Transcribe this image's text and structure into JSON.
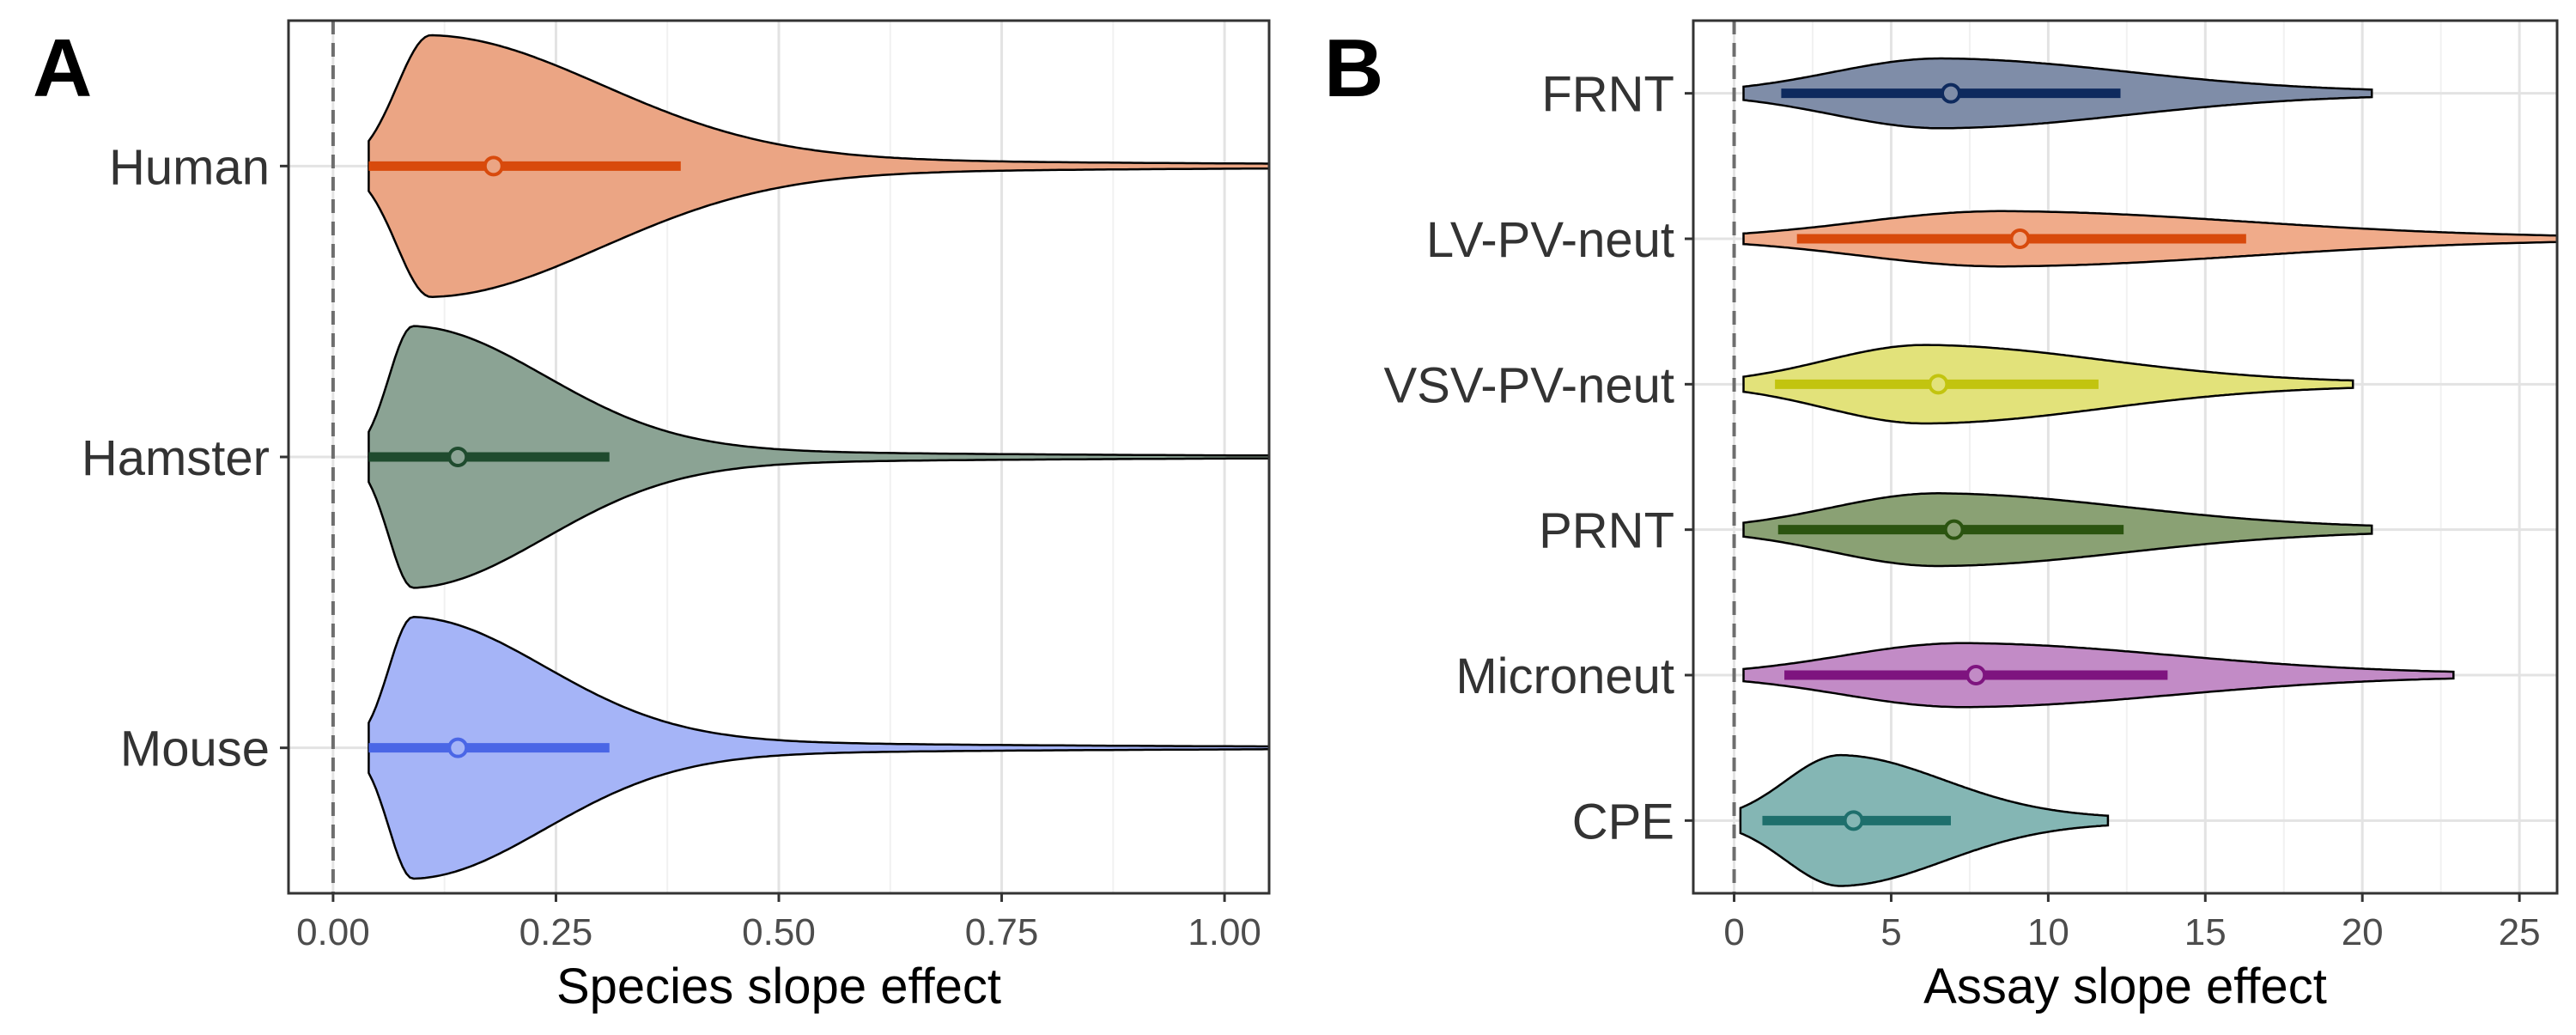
{
  "chart_data": [
    {
      "type": "violin",
      "panel_label": "A",
      "xlabel": "Species slope effect",
      "ylabel": "",
      "xlim": [
        -0.05,
        1.05
      ],
      "x_ticks": [
        0.0,
        0.25,
        0.5,
        0.75,
        1.0
      ],
      "x_tick_labels": [
        "0.00",
        "0.25",
        "0.50",
        "0.75",
        "1.00"
      ],
      "reference_line_x": 0,
      "grid": true,
      "categories": [
        "Human",
        "Hamster",
        "Mouse"
      ],
      "series": [
        {
          "name": "Human",
          "fill": "#EBA584",
          "line": "#D84A0C",
          "point": 0.18,
          "interval": [
            0.04,
            0.39
          ],
          "range": [
            0.04,
            1.05
          ],
          "mode": 0.11,
          "halfwidth": 0.45
        },
        {
          "name": "Hamster",
          "fill": "#8BA394",
          "line": "#1F4B2E",
          "point": 0.14,
          "interval": [
            0.04,
            0.31
          ],
          "range": [
            0.04,
            1.05
          ],
          "mode": 0.09,
          "halfwidth": 0.45
        },
        {
          "name": "Mouse",
          "fill": "#A5B4F7",
          "line": "#4A66E6",
          "point": 0.14,
          "interval": [
            0.04,
            0.31
          ],
          "range": [
            0.04,
            1.05
          ],
          "mode": 0.09,
          "halfwidth": 0.45
        }
      ]
    },
    {
      "type": "violin",
      "panel_label": "B",
      "xlabel": "Assay slope effect",
      "ylabel": "",
      "xlim": [
        -1.3,
        26.2
      ],
      "x_ticks": [
        0,
        5,
        10,
        15,
        20,
        25
      ],
      "x_tick_labels": [
        "0",
        "5",
        "10",
        "15",
        "20",
        "25"
      ],
      "reference_line_x": 0,
      "grid": true,
      "categories": [
        "FRNT",
        "LV-PV-neut",
        "VSV-PV-neut",
        "PRNT",
        "Microneut",
        "CPE"
      ],
      "series": [
        {
          "name": "FRNT",
          "fill": "#7F8DA8",
          "line": "#0E2A5E",
          "point": 6.9,
          "interval": [
            1.5,
            12.3
          ],
          "range": [
            0.3,
            20.3
          ],
          "mode": 6.6,
          "halfwidth": 0.24
        },
        {
          "name": "LV-PV-neut",
          "fill": "#F0AB8A",
          "line": "#D84A0C",
          "point": 9.1,
          "interval": [
            2.0,
            16.3
          ],
          "range": [
            0.3,
            26.2
          ],
          "mode": 8.5,
          "halfwidth": 0.19
        },
        {
          "name": "VSV-PV-neut",
          "fill": "#E2E27A",
          "line": "#C2C40F",
          "point": 6.5,
          "interval": [
            1.3,
            11.6
          ],
          "range": [
            0.3,
            19.7
          ],
          "mode": 6.1,
          "halfwidth": 0.27
        },
        {
          "name": "PRNT",
          "fill": "#8AA174",
          "line": "#2B5410",
          "point": 7.0,
          "interval": [
            1.4,
            12.4
          ],
          "range": [
            0.3,
            20.3
          ],
          "mode": 6.5,
          "halfwidth": 0.25
        },
        {
          "name": "Microneut",
          "fill": "#C28BC6",
          "line": "#7E147F",
          "point": 7.7,
          "interval": [
            1.6,
            13.8
          ],
          "range": [
            0.3,
            22.9
          ],
          "mode": 7.3,
          "halfwidth": 0.22
        },
        {
          "name": "CPE",
          "fill": "#84B6B4",
          "line": "#1E6F6C",
          "point": 3.8,
          "interval": [
            0.9,
            6.9
          ],
          "range": [
            0.2,
            11.9
          ],
          "mode": 3.4,
          "halfwidth": 0.45
        }
      ]
    }
  ]
}
